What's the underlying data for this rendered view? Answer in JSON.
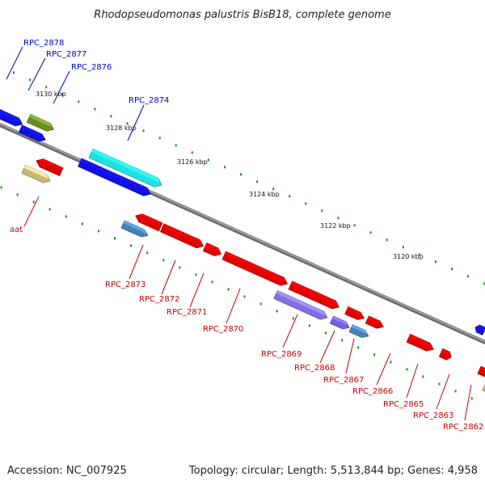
{
  "title": "Rhodopseudomonas palustris BisB18, complete genome",
  "footer": {
    "accession": "Accession: NC_007925",
    "topology": "Topology: circular; Length: 5,513,844 bp; Genes: 4,958"
  },
  "colors": {
    "backbone": "#808080",
    "label_top": "#0000cc",
    "label_bottom": "#cc0000",
    "tick": "#228b22"
  },
  "scale_labels": [
    "3130 kbp",
    "3128 kbp",
    "3126 kbp",
    "3124 kbp",
    "3122 kbp",
    "3120 kbp"
  ],
  "top_labels": [
    "RPC_2878",
    "RPC_2877",
    "RPC_2876",
    "RPC_2874"
  ],
  "bottom_labels": [
    "aat",
    "RPC_2873",
    "RPC_2872",
    "RPC_2871",
    "RPC_2870",
    "RPC_2869",
    "RPC_2868",
    "RPC_2867",
    "RPC_2866",
    "RPC_2865",
    "RPC_2863",
    "RPC_2862"
  ]
}
